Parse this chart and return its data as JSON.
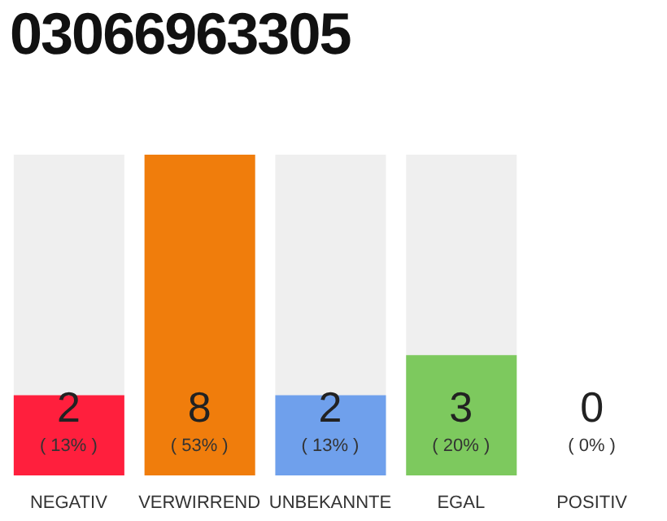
{
  "chart_data": {
    "type": "bar",
    "title": "03066963305",
    "categories": [
      "NEGATIV",
      "VERWIRREND",
      "UNBEKANNTE",
      "EGAL",
      "POSITIV"
    ],
    "values": [
      2,
      8,
      2,
      3,
      0
    ],
    "colors": [
      "#ff1f3d",
      "#f07d0c",
      "#6fa0ec",
      "#7dc95e",
      "#cccccc"
    ],
    "tick_labels": "x",
    "data_labels": true,
    "annotations": [
      "( 13% )",
      "( 53% )",
      "( 13% )",
      "( 20% )",
      "( 0% )"
    ]
  }
}
